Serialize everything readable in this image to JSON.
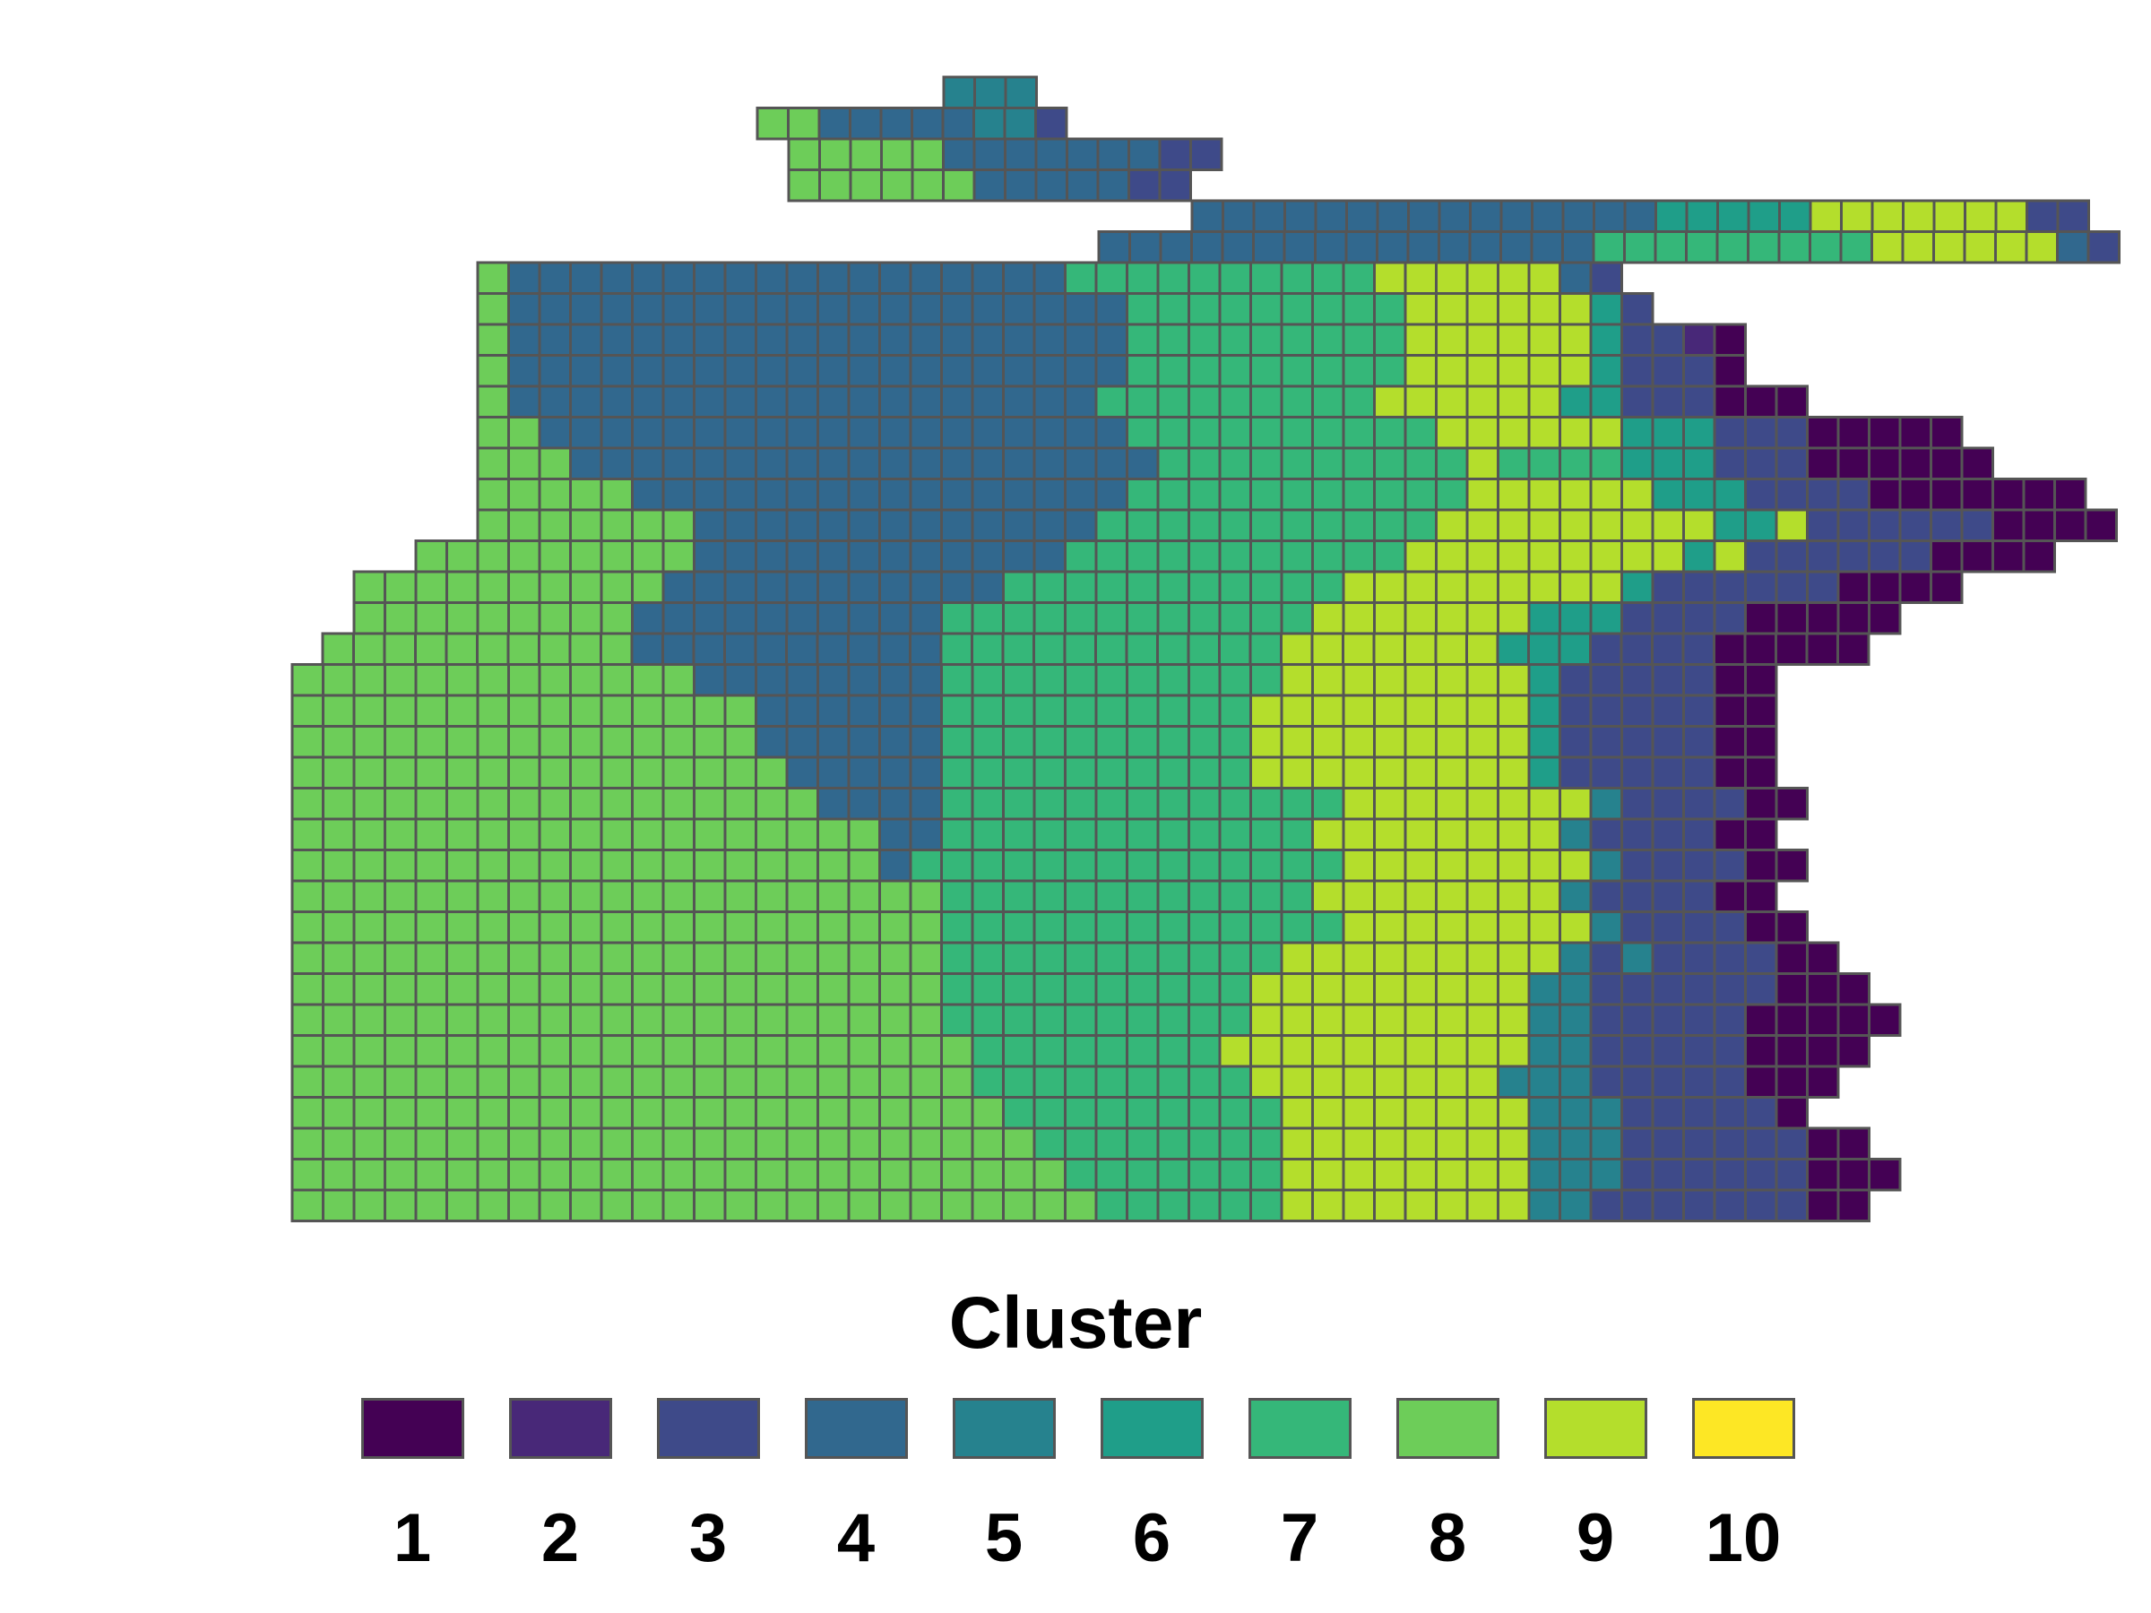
{
  "legend": {
    "title": "Cluster",
    "items": [
      {
        "label": "1",
        "color": "#440154"
      },
      {
        "label": "2",
        "color": "#482878"
      },
      {
        "label": "3",
        "color": "#3E4A89"
      },
      {
        "label": "4",
        "color": "#31688E"
      },
      {
        "label": "5",
        "color": "#26828E"
      },
      {
        "label": "6",
        "color": "#1F9E89"
      },
      {
        "label": "7",
        "color": "#35B779"
      },
      {
        "label": "8",
        "color": "#6DCD59"
      },
      {
        "label": "9",
        "color": "#B4DE2C"
      },
      {
        "label": "10",
        "color": "#FDE725"
      }
    ]
  },
  "map": {
    "cell_border_color": "#555555",
    "grid_rows": [
      [
        16,
        "555"
      ],
      [
        15,
        "8844444553"
      ],
      [
        14,
        "88888444444433"
      ],
      [
        13,
        "8888884444433"
      ],
      [
        12,
        "44444444444444466666999999933"
      ],
      [
        11,
        "444444444444444477777777799999943"
      ],
      [
        10,
        "8444444444444444444777777777799999943"
      ],
      [
        9,
        "84444444444444444444477777777799999963"
      ],
      [
        8,
        "84444444444444444444477777777799999963321"
      ],
      [
        7,
        "84444444444444444444477777777799999963331"
      ],
      [
        6,
        "8444444444444444444477777777799999966333111"
      ],
      [
        5,
        "884444444444444444444777777777799999966633311111"
      ],
      [
        4,
        "8884444444444444444444777777777797777666333111111"
      ],
      [
        3,
        "8888844444444444444447777777777799999966633331111111"
      ],
      [
        2,
        "88888884444444444444777777777779999999996693333331111"
      ],
      [
        1,
        "88888888844444444444477777777777999999999693333331111"
      ],
      [
        0,
        "8888888888444444444447777777777799999999963333331111"
      ],
      [
        -1,
        "88888888844444444447777777777779999999666333311111"
      ],
      [
        -2,
        "88888888884444444444777777777779999999666333311111"
      ],
      [
        -3,
        "888888888888844444444777777777779999999963333311"
      ],
      [
        -4,
        "888888888888888444444777777777799999999963333311"
      ],
      [
        -5,
        "888888888888888444444777777777799999999963333311"
      ],
      [
        -6,
        "888888888888888844444777777777799999999963333311"
      ],
      [
        -7,
        "8888888888888888844447777777777777999999995333311"
      ],
      [
        -8,
        "888888888888888888844777777777777999999995333311"
      ],
      [
        -9,
        "8888888888888888888477777777777777999999995333311"
      ],
      [
        -10,
        "888888888888888888888777777777777999999995333311"
      ],
      [
        -11,
        "8888888888888888888887777777777777999999995333311"
      ],
      [
        -12,
        "88888888888888888888877777777777999999999535333311"
      ],
      [
        -13,
        "888888888888888888888777777777799999999955333333111"
      ],
      [
        -14,
        "8888888888888888888887777777777999999999553333311111"
      ],
      [
        -15,
        "888888888888888888888877777777999999999955333331111"
      ],
      [
        -16,
        "88888888888888888888887777777779999999955533333111"
      ],
      [
        -17,
        "8888888888888888888888877777777799999999555333331"
      ],
      [
        -18,
        "888888888888888888888888777777779999999955533333311"
      ],
      [
        -19,
        "8888888888888888888888888777777799999999555333333111"
      ],
      [
        -20,
        "888888888888888888888888887777779999999955333333311"
      ]
    ]
  }
}
